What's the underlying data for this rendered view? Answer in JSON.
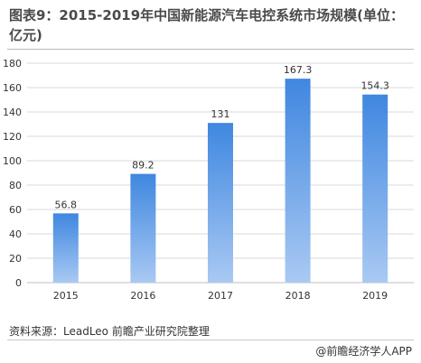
{
  "title": "图表9：2015-2019年中国新能源汽车电控系统市场规模(单位：亿元)",
  "source": "资料来源：LeadLeo 前瞻产业研究院整理",
  "credit": "@前瞻经济学人APP",
  "colors": {
    "bar_top": "#3f87e0",
    "bar_bottom": "#a9c9f3",
    "grid": "#d9d9d9"
  },
  "chart_data": {
    "type": "bar",
    "title": "图表9：2015-2019年中国新能源汽车电控系统市场规模(单位：亿元)",
    "categories": [
      "2015",
      "2016",
      "2017",
      "2018",
      "2019"
    ],
    "values": [
      56.8,
      89.2,
      131,
      167.3,
      154.3
    ],
    "value_labels": [
      "56.8",
      "89.2",
      "131",
      "167.3",
      "154.3"
    ],
    "y_ticks": [
      "0",
      "20",
      "40",
      "60",
      "80",
      "100",
      "120",
      "140",
      "160",
      "180"
    ],
    "ylim": [
      0,
      180
    ],
    "grid": true,
    "legend": "none"
  }
}
